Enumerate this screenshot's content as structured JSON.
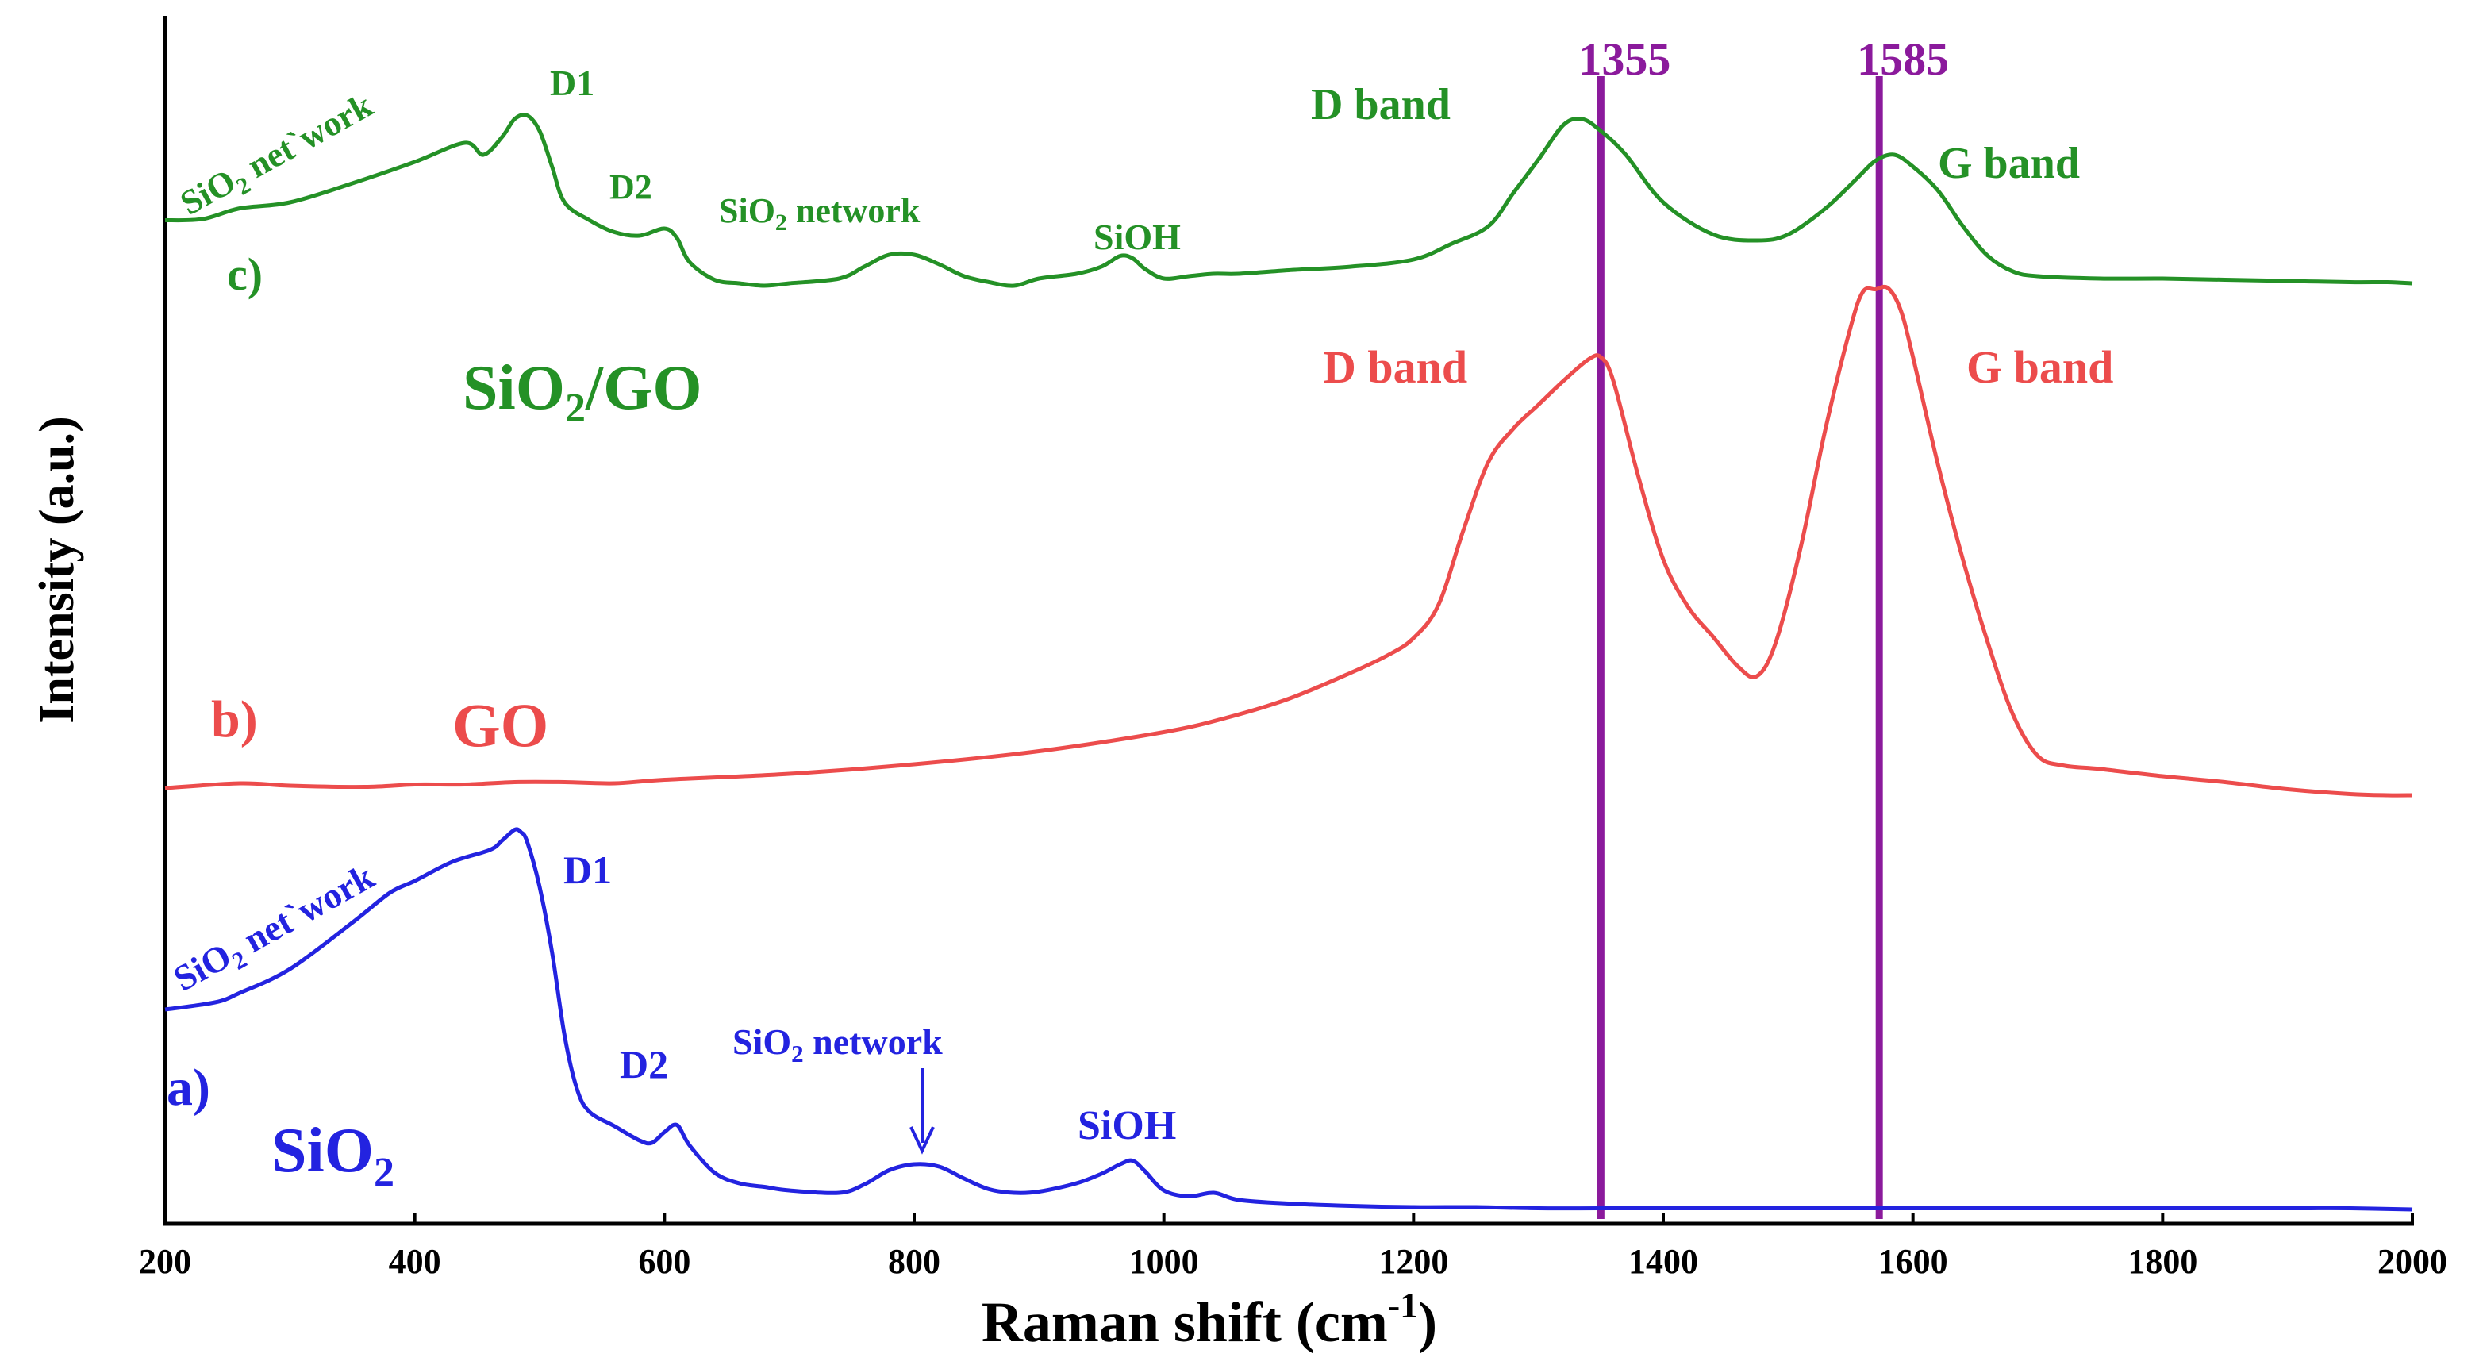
{
  "chart_data": {
    "type": "line",
    "title": "",
    "xlabel": "Raman shift (cm",
    "xlabel_sup": "-1",
    "xlabel_close": ")",
    "ylabel": "Intensity (a.u.)",
    "xlim": [
      200,
      2000
    ],
    "ylim": [
      0,
      100
    ],
    "x_ticks": [
      "200",
      "400",
      "600",
      "800",
      "1000",
      "1200",
      "1400",
      "1600",
      "1800",
      "2000"
    ],
    "reference_lines": [
      {
        "label": "1355",
        "x": 1350,
        "color": "#8b1a9c"
      },
      {
        "label": "1585",
        "x": 1573,
        "color": "#8b1a9c"
      }
    ],
    "series": [
      {
        "name": "SiO2",
        "label": "a)",
        "sample": "SiO",
        "sample_sub": "2",
        "color": "#2323e0",
        "x": [
          200,
          240,
          260,
          300,
          350,
          380,
          400,
          430,
          460,
          470,
          480,
          485,
          490,
          500,
          510,
          520,
          530,
          540,
          560,
          580,
          590,
          600,
          610,
          620,
          640,
          660,
          680,
          700,
          740,
          760,
          780,
          800,
          820,
          840,
          860,
          880,
          900,
          930,
          950,
          965,
          975,
          985,
          1000,
          1020,
          1040,
          1060,
          1100,
          1150,
          1200,
          1250,
          1300,
          1350,
          1400,
          1450,
          1500,
          1550,
          1600,
          1650,
          1700,
          1750,
          1800,
          1850,
          1900,
          1950,
          2000
        ],
        "values": [
          17.2,
          17.8,
          18.6,
          20.6,
          24.5,
          27.0,
          28.0,
          29.6,
          30.6,
          31.4,
          32.3,
          32.1,
          31.3,
          27.5,
          22.0,
          15.0,
          10.5,
          8.6,
          7.4,
          6.2,
          6.0,
          6.9,
          7.5,
          5.8,
          3.5,
          2.6,
          2.3,
          2.0,
          1.8,
          2.5,
          3.7,
          4.2,
          4.0,
          3.0,
          2.1,
          1.8,
          1.9,
          2.6,
          3.4,
          4.2,
          4.5,
          3.6,
          2.0,
          1.5,
          1.8,
          1.2,
          0.9,
          0.7,
          0.6,
          0.6,
          0.5,
          0.5,
          0.5,
          0.5,
          0.5,
          0.5,
          0.5,
          0.5,
          0.5,
          0.5,
          0.5,
          0.5,
          0.5,
          0.5,
          0.4
        ]
      },
      {
        "name": "GO",
        "label": "b)",
        "sample": "GO",
        "color": "#ec4c4c",
        "x": [
          200,
          260,
          300,
          360,
          400,
          440,
          480,
          520,
          560,
          600,
          700,
          800,
          900,
          1000,
          1050,
          1100,
          1150,
          1180,
          1200,
          1220,
          1240,
          1260,
          1280,
          1300,
          1320,
          1340,
          1350,
          1360,
          1380,
          1400,
          1420,
          1440,
          1460,
          1475,
          1490,
          1510,
          1530,
          1550,
          1560,
          1570,
          1580,
          1590,
          1600,
          1620,
          1640,
          1660,
          1680,
          1700,
          1720,
          1750,
          1800,
          1850,
          1900,
          1950,
          1980,
          2000
        ],
        "values": [
          35.8,
          36.2,
          36.0,
          35.9,
          36.1,
          36.1,
          36.3,
          36.3,
          36.2,
          36.5,
          37.0,
          37.8,
          38.9,
          40.5,
          41.7,
          43.3,
          45.5,
          47.0,
          48.4,
          51.2,
          57.5,
          63.2,
          66.0,
          68.0,
          70.0,
          71.8,
          72.0,
          70.0,
          62.0,
          55.0,
          51.0,
          48.5,
          46.0,
          45.2,
          48.0,
          56.0,
          66.0,
          74.5,
          77.5,
          77.7,
          77.8,
          76.0,
          72.0,
          63.0,
          55.0,
          48.0,
          42.0,
          38.5,
          37.7,
          37.4,
          36.8,
          36.3,
          35.7,
          35.3,
          35.2,
          35.2
        ]
      },
      {
        "name": "SiO2/GO",
        "label": "c)",
        "sample": "SiO",
        "sample_sub": "2",
        "sample_suffix": "/GO",
        "color": "#249126",
        "x": [
          200,
          230,
          260,
          300,
          350,
          400,
          440,
          455,
          470,
          480,
          490,
          500,
          510,
          520,
          540,
          560,
          580,
          600,
          610,
          620,
          640,
          660,
          680,
          700,
          740,
          760,
          780,
          800,
          820,
          840,
          860,
          880,
          900,
          930,
          950,
          965,
          975,
          985,
          1000,
          1020,
          1040,
          1060,
          1100,
          1150,
          1200,
          1230,
          1260,
          1280,
          1300,
          1320,
          1335,
          1350,
          1370,
          1400,
          1440,
          1475,
          1500,
          1530,
          1555,
          1570,
          1585,
          1600,
          1620,
          1640,
          1660,
          1680,
          1700,
          1750,
          1800,
          1850,
          1900,
          1950,
          1980,
          2000
        ],
        "values": [
          83.5,
          83.6,
          84.5,
          85.0,
          86.6,
          88.4,
          90.0,
          89.0,
          90.5,
          92.0,
          92.3,
          91.0,
          88.0,
          85.0,
          83.5,
          82.5,
          82.2,
          82.8,
          82.0,
          80.0,
          78.5,
          78.2,
          78.0,
          78.2,
          78.6,
          79.6,
          80.6,
          80.6,
          79.8,
          78.8,
          78.3,
          78.0,
          78.6,
          79.0,
          79.6,
          80.5,
          80.3,
          79.4,
          78.6,
          78.8,
          79.0,
          79.0,
          79.3,
          79.6,
          80.2,
          81.5,
          83.0,
          85.8,
          88.6,
          91.5,
          92.0,
          91.0,
          89.0,
          85.0,
          82.3,
          81.8,
          82.3,
          84.5,
          87.0,
          88.5,
          89.0,
          88.0,
          86.0,
          83.0,
          80.5,
          79.2,
          78.8,
          78.6,
          78.6,
          78.5,
          78.4,
          78.3,
          78.3,
          78.2
        ]
      }
    ],
    "annotations": {
      "a": {
        "network_left": "SiO",
        "network_left_sub": "2",
        "network_left_suffix": " net`work",
        "d1": "D1",
        "d2": "D2",
        "network_mid": "SiO",
        "network_mid_sub": "2",
        "network_mid_suffix": " network",
        "sioh": "SiOH"
      },
      "b": {
        "d_band": "D band",
        "g_band": "G band"
      },
      "c": {
        "network_left": "SiO",
        "network_left_sub": "2",
        "network_left_suffix": " net`work",
        "d1": "D1",
        "d2": "D2",
        "network_mid": "SiO",
        "network_mid_sub": "2",
        "network_mid_suffix": " network",
        "sioh": "SiOH",
        "d_band": "D band",
        "g_band": "G band"
      }
    }
  }
}
